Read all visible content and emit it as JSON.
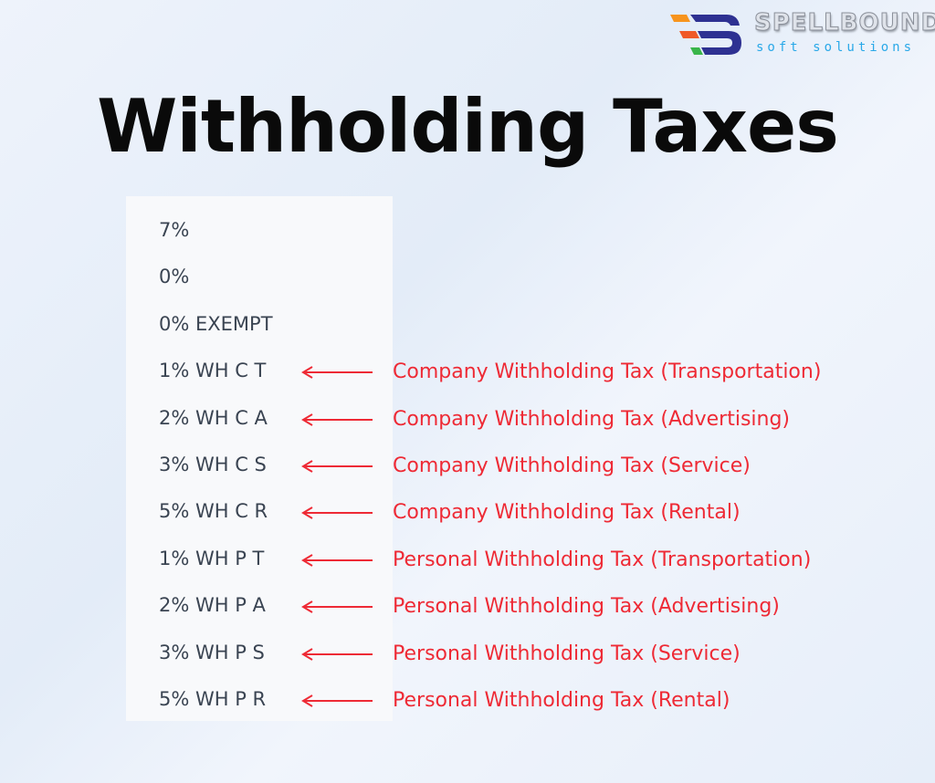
{
  "logo": {
    "name": "SPELLBOUND",
    "tagline": "soft solutions",
    "colors": {
      "orange": "#f7941d",
      "red": "#f05a28",
      "green": "#39b54a",
      "navy": "#2e3192"
    }
  },
  "title": "Withholding Taxes",
  "list": [
    {
      "code": "7%",
      "description": null
    },
    {
      "code": "0%",
      "description": null
    },
    {
      "code": "0% EXEMPT",
      "description": null
    },
    {
      "code": "1% WH C T",
      "description": "Company Withholding Tax (Transportation)"
    },
    {
      "code": "2% WH C A",
      "description": "Company Withholding Tax (Advertising)"
    },
    {
      "code": "3% WH C S",
      "description": "Company Withholding Tax (Service)"
    },
    {
      "code": "5% WH C R",
      "description": "Company Withholding Tax (Rental)"
    },
    {
      "code": "1% WH P T",
      "description": "Personal Withholding Tax (Transportation)"
    },
    {
      "code": "2% WH P A",
      "description": "Personal Withholding Tax (Advertising)"
    },
    {
      "code": "3% WH P S",
      "description": "Personal Withholding Tax (Service)"
    },
    {
      "code": "5% WH P R",
      "description": "Personal Withholding Tax (Rental)"
    }
  ],
  "colors": {
    "arrow": "#ee2a35",
    "description": "#ee2a35",
    "code": "#3a4452"
  }
}
